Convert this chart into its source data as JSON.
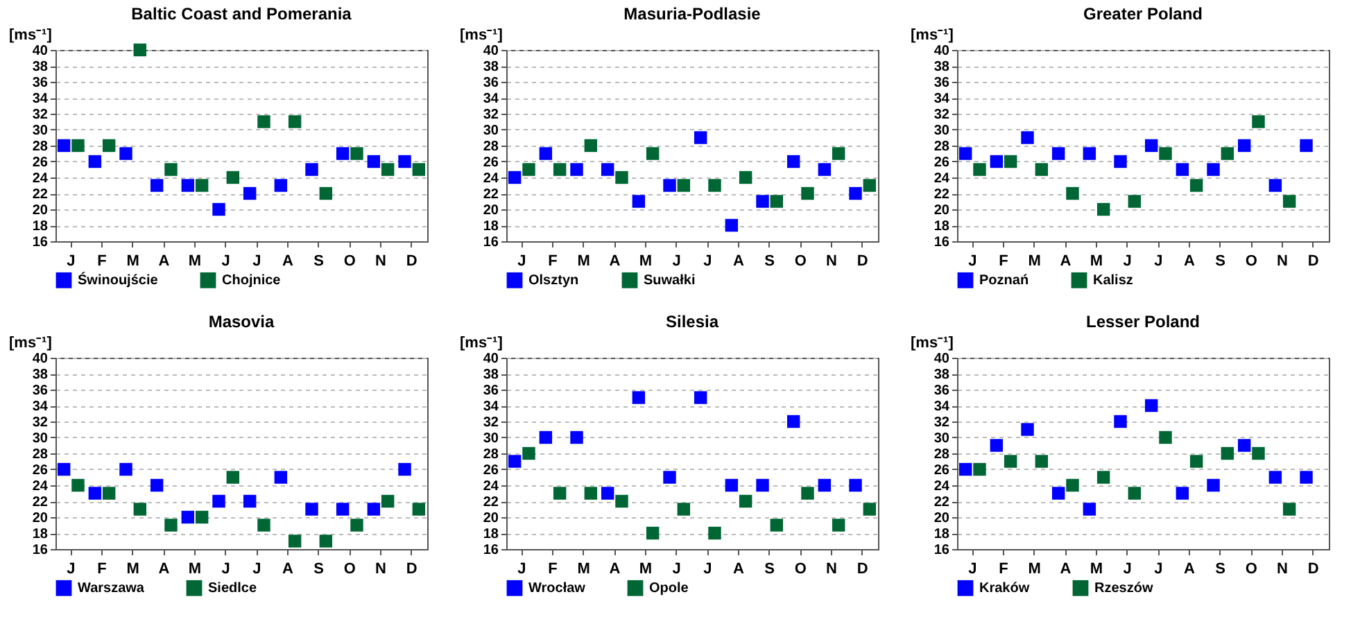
{
  "chart_data": [
    {
      "type": "scatter",
      "title": "Baltic Coast and Pomerania",
      "ylabel": "[ms⁻¹]",
      "categories": [
        "J",
        "F",
        "M",
        "A",
        "M",
        "J",
        "J",
        "A",
        "S",
        "O",
        "N",
        "D"
      ],
      "ylim": [
        16,
        40
      ],
      "yticks": [
        16,
        18,
        20,
        22,
        24,
        26,
        28,
        30,
        32,
        34,
        36,
        38,
        40
      ],
      "grid": "y",
      "legend": "bottom",
      "marker": "square",
      "series": [
        {
          "name": "Świnoujście",
          "color": "#0000ff",
          "values": [
            28,
            26,
            27,
            23,
            23,
            20,
            22,
            23,
            25,
            27,
            26,
            26
          ]
        },
        {
          "name": "Chojnice",
          "color": "#006633",
          "values": [
            28,
            28,
            40,
            25,
            23,
            24,
            31,
            31,
            22,
            27,
            25,
            25
          ]
        }
      ]
    },
    {
      "type": "scatter",
      "title": "Masuria-Podlasie",
      "ylabel": "[ms⁻¹]",
      "categories": [
        "J",
        "F",
        "M",
        "A",
        "M",
        "J",
        "J",
        "A",
        "S",
        "O",
        "N",
        "D"
      ],
      "ylim": [
        16,
        40
      ],
      "yticks": [
        16,
        18,
        20,
        22,
        24,
        26,
        28,
        30,
        32,
        34,
        36,
        38,
        40
      ],
      "grid": "y",
      "legend": "bottom",
      "marker": "square",
      "series": [
        {
          "name": "Olsztyn",
          "color": "#0000ff",
          "values": [
            24,
            27,
            25,
            25,
            21,
            23,
            29,
            18,
            21,
            26,
            25,
            22
          ]
        },
        {
          "name": "Suwałki",
          "color": "#006633",
          "values": [
            25,
            25,
            28,
            24,
            27,
            23,
            23,
            24,
            21,
            22,
            27,
            23
          ]
        }
      ]
    },
    {
      "type": "scatter",
      "title": "Greater Poland",
      "ylabel": "[ms⁻¹]",
      "categories": [
        "J",
        "F",
        "M",
        "A",
        "M",
        "J",
        "J",
        "A",
        "S",
        "O",
        "N",
        "D"
      ],
      "ylim": [
        16,
        40
      ],
      "yticks": [
        16,
        18,
        20,
        22,
        24,
        26,
        28,
        30,
        32,
        34,
        36,
        38,
        40
      ],
      "grid": "y",
      "legend": "bottom",
      "marker": "square",
      "series": [
        {
          "name": "Poznań",
          "color": "#0000ff",
          "values": [
            27,
            26,
            29,
            27,
            27,
            26,
            28,
            25,
            25,
            28,
            23,
            28
          ]
        },
        {
          "name": "Kalisz",
          "color": "#006633",
          "values": [
            25,
            26,
            25,
            22,
            20,
            21,
            27,
            23,
            27,
            31,
            21,
            null
          ]
        }
      ]
    },
    {
      "type": "scatter",
      "title": "Masovia",
      "ylabel": "[ms⁻¹]",
      "categories": [
        "J",
        "F",
        "M",
        "A",
        "M",
        "J",
        "J",
        "A",
        "S",
        "O",
        "N",
        "D"
      ],
      "ylim": [
        16,
        40
      ],
      "yticks": [
        16,
        18,
        20,
        22,
        24,
        26,
        28,
        30,
        32,
        34,
        36,
        38,
        40
      ],
      "grid": "y",
      "legend": "bottom",
      "marker": "square",
      "series": [
        {
          "name": "Warszawa",
          "color": "#0000ff",
          "values": [
            26,
            23,
            26,
            24,
            20,
            22,
            22,
            25,
            21,
            21,
            21,
            26
          ]
        },
        {
          "name": "Siedlce",
          "color": "#006633",
          "values": [
            24,
            23,
            21,
            19,
            20,
            25,
            19,
            17,
            17,
            19,
            22,
            21
          ]
        }
      ]
    },
    {
      "type": "scatter",
      "title": "Silesia",
      "ylabel": "[ms⁻¹]",
      "categories": [
        "J",
        "F",
        "M",
        "A",
        "M",
        "J",
        "J",
        "A",
        "S",
        "O",
        "N",
        "D"
      ],
      "ylim": [
        16,
        40
      ],
      "yticks": [
        16,
        18,
        20,
        22,
        24,
        26,
        28,
        30,
        32,
        34,
        36,
        38,
        40
      ],
      "grid": "y",
      "legend": "bottom",
      "marker": "square",
      "series": [
        {
          "name": "Wrocław",
          "color": "#0000ff",
          "values": [
            27,
            30,
            30,
            23,
            35,
            25,
            35,
            24,
            24,
            32,
            24,
            24
          ]
        },
        {
          "name": "Opole",
          "color": "#006633",
          "values": [
            28,
            23,
            23,
            22,
            18,
            21,
            18,
            22,
            19,
            23,
            19,
            21
          ]
        }
      ]
    },
    {
      "type": "scatter",
      "title": "Lesser Poland",
      "ylabel": "[ms⁻¹]",
      "categories": [
        "J",
        "F",
        "M",
        "A",
        "M",
        "J",
        "J",
        "A",
        "S",
        "O",
        "N",
        "D"
      ],
      "ylim": [
        16,
        40
      ],
      "yticks": [
        16,
        18,
        20,
        22,
        24,
        26,
        28,
        30,
        32,
        34,
        36,
        38,
        40
      ],
      "grid": "y",
      "legend": "bottom",
      "marker": "square",
      "series": [
        {
          "name": "Kraków",
          "color": "#0000ff",
          "values": [
            26,
            29,
            31,
            23,
            21,
            32,
            34,
            23,
            24,
            29,
            25,
            25
          ]
        },
        {
          "name": "Rzeszów",
          "color": "#006633",
          "values": [
            26,
            27,
            27,
            24,
            25,
            23,
            30,
            27,
            28,
            28,
            21,
            null
          ]
        }
      ]
    }
  ]
}
